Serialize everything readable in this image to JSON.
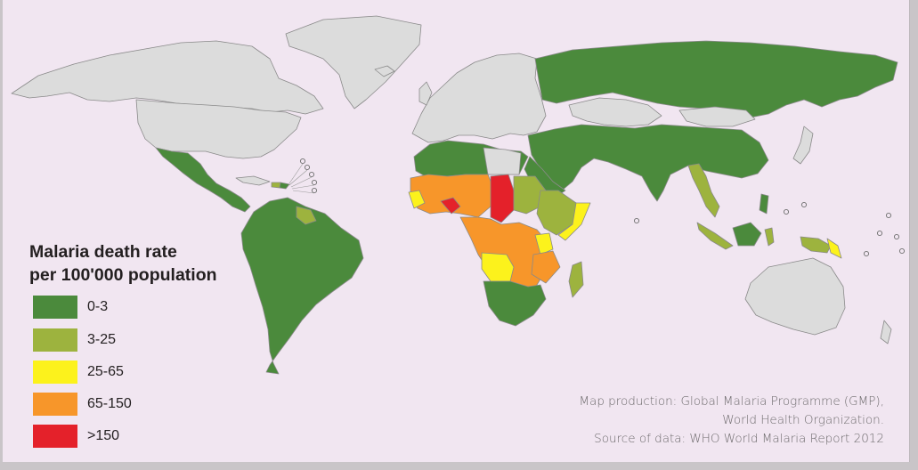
{
  "legend": {
    "title_line1": "Malaria death rate",
    "title_line2": "per 100'000 population",
    "items": [
      {
        "label": "0-3",
        "color": "#4b8a3c"
      },
      {
        "label": "3-25",
        "color": "#9db33e"
      },
      {
        "label": "25-65",
        "color": "#fcf21c"
      },
      {
        "label": "65-150",
        "color": "#f7962a"
      },
      {
        "label": ">150",
        "color": "#e4212a"
      }
    ]
  },
  "credits": {
    "line1": "Map production: Global Malaria Programme (GMP),",
    "line2": "World Health Organization.",
    "line3": "Source of data: WHO World Malaria Report 2012"
  },
  "colors": {
    "background": "#f1e6f1",
    "no_data": "#dcdcdc",
    "border": "#8a8a8a"
  }
}
